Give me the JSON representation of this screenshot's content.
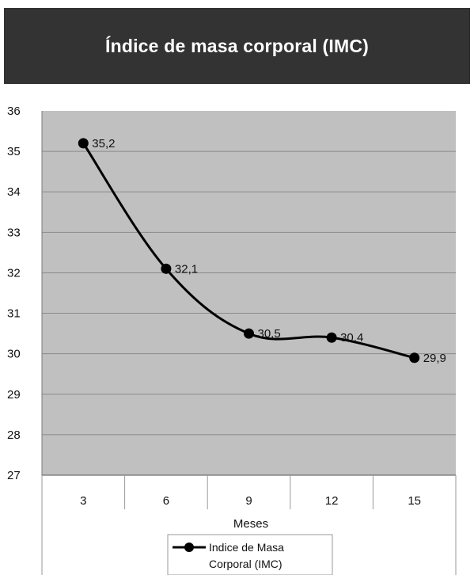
{
  "chart_data": {
    "type": "line",
    "title": "Índice de masa corporal (IMC)",
    "xlabel": "Meses",
    "ylabel": "",
    "categories": [
      "3",
      "6",
      "9",
      "12",
      "15"
    ],
    "series": [
      {
        "name": "Indice de Masa Corporal (IMC)",
        "values": [
          35.2,
          32.1,
          30.5,
          30.4,
          29.9
        ],
        "data_labels": [
          "35,2",
          "32,1",
          "30,5",
          "30,4",
          "29,9"
        ],
        "color": "#000000",
        "smooth": true,
        "marker": "circle"
      }
    ],
    "ylim": [
      27,
      36
    ],
    "yticks": [
      "27",
      "28",
      "29",
      "30",
      "31",
      "32",
      "33",
      "34",
      "35",
      "36"
    ],
    "grid": true,
    "legend_position": "bottom",
    "legend_lines": [
      "Indice de Masa",
      "Corporal (IMC)"
    ],
    "plot_background": "#c0c0c0",
    "title_background": "#333333"
  }
}
